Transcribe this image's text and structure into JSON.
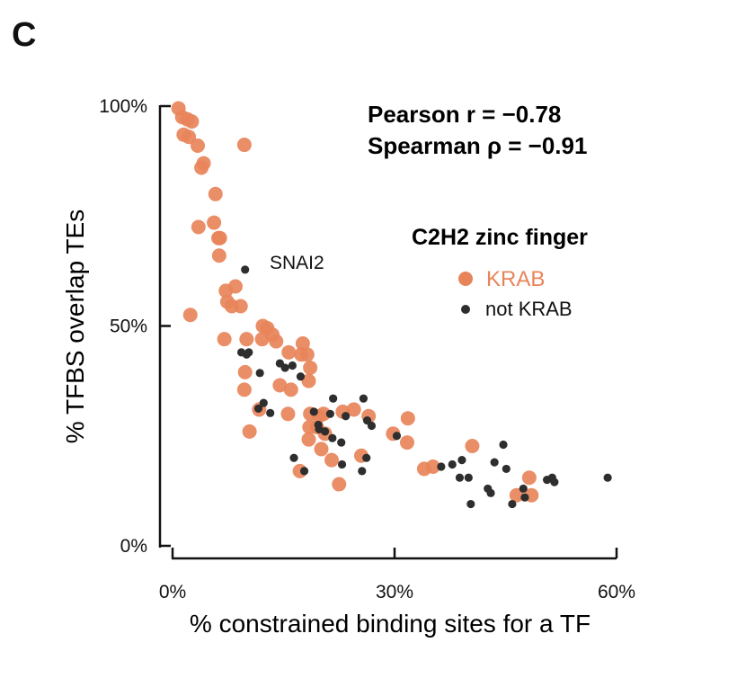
{
  "panel_label": "C",
  "colors": {
    "krab": "#E8845A",
    "not_krab": "#2E2E2E"
  },
  "chart_data": {
    "type": "scatter",
    "title": "",
    "xlabel": "% constrained binding sites for a TF",
    "ylabel": "% TFBS overlap TEs",
    "xlim": [
      0,
      60
    ],
    "ylim": [
      0,
      100
    ],
    "x_ticks": [
      {
        "value": 0,
        "label": "0%"
      },
      {
        "value": 30,
        "label": "30%"
      },
      {
        "value": 60,
        "label": "60%"
      }
    ],
    "y_ticks": [
      {
        "value": 0,
        "label": "0%"
      },
      {
        "value": 50,
        "label": "50%"
      },
      {
        "value": 100,
        "label": "100%"
      }
    ],
    "grid": false,
    "stats": [
      "Pearson r = −0.78",
      "Spearman ρ = −0.91"
    ],
    "legend": {
      "title": "C2H2 zinc finger",
      "position": "top-right",
      "entries": [
        {
          "label": "KRAB",
          "series": "KRAB"
        },
        {
          "label": "not KRAB",
          "series": "not KRAB"
        }
      ]
    },
    "annotations": [
      {
        "text": "SNAI2",
        "x": 9.5,
        "y": 63
      }
    ],
    "series": [
      {
        "name": "KRAB",
        "points": [
          [
            0.8,
            99.5
          ],
          [
            1.3,
            97.5
          ],
          [
            2.0,
            97
          ],
          [
            2.6,
            96.5
          ],
          [
            1.5,
            93.5
          ],
          [
            2.2,
            93
          ],
          [
            3.4,
            91
          ],
          [
            9.7,
            91.2
          ],
          [
            4.2,
            87
          ],
          [
            3.9,
            86
          ],
          [
            5.8,
            80
          ],
          [
            3.5,
            72.5
          ],
          [
            5.6,
            73.5
          ],
          [
            6.2,
            70
          ],
          [
            6.4,
            70
          ],
          [
            6.3,
            66
          ],
          [
            7.2,
            58
          ],
          [
            8.5,
            59
          ],
          [
            7.4,
            55.5
          ],
          [
            8.0,
            54.5
          ],
          [
            9.2,
            54.5
          ],
          [
            2.4,
            52.5
          ],
          [
            7.0,
            47
          ],
          [
            10.0,
            47
          ],
          [
            12.2,
            50
          ],
          [
            12.8,
            49.5
          ],
          [
            12.1,
            47
          ],
          [
            13.5,
            48
          ],
          [
            14.0,
            46.5
          ],
          [
            15.7,
            44
          ],
          [
            17.6,
            46
          ],
          [
            17.4,
            43.5
          ],
          [
            18.2,
            43.5
          ],
          [
            18.6,
            40.5
          ],
          [
            9.8,
            39.5
          ],
          [
            18.4,
            37.5
          ],
          [
            14.5,
            36.5
          ],
          [
            16.0,
            35.5
          ],
          [
            9.7,
            35.5
          ],
          [
            11.7,
            31
          ],
          [
            15.6,
            30
          ],
          [
            18.6,
            30
          ],
          [
            19.8,
            29.5
          ],
          [
            20.4,
            30
          ],
          [
            23.0,
            30.5
          ],
          [
            24.5,
            31
          ],
          [
            26.5,
            29.5
          ],
          [
            31.8,
            29
          ],
          [
            18.5,
            27
          ],
          [
            19.5,
            27
          ],
          [
            18.4,
            24.2
          ],
          [
            20.6,
            25.5
          ],
          [
            10.4,
            26
          ],
          [
            29.8,
            25.5
          ],
          [
            31.7,
            23.5
          ],
          [
            40.5,
            22.7
          ],
          [
            20.1,
            22
          ],
          [
            21.5,
            19.5
          ],
          [
            25.5,
            20.5
          ],
          [
            17.2,
            17
          ],
          [
            34.0,
            17.5
          ],
          [
            35.2,
            18
          ],
          [
            22.5,
            14
          ],
          [
            48.2,
            15.5
          ],
          [
            46.5,
            11.5
          ],
          [
            48.5,
            11.5
          ]
        ]
      },
      {
        "name": "not KRAB",
        "points": [
          [
            9.8,
            62.8
          ],
          [
            9.3,
            44
          ],
          [
            10.0,
            43.5
          ],
          [
            10.3,
            44
          ],
          [
            11.8,
            39.3
          ],
          [
            14.5,
            41.5
          ],
          [
            15.2,
            40.5
          ],
          [
            16.2,
            41
          ],
          [
            17.3,
            38.5
          ],
          [
            12.3,
            32.5
          ],
          [
            11.6,
            31.2
          ],
          [
            13.2,
            30.2
          ],
          [
            19.1,
            30.5
          ],
          [
            21.7,
            33.5
          ],
          [
            25.8,
            33.5
          ],
          [
            21.3,
            30
          ],
          [
            23.4,
            29.5
          ],
          [
            26.3,
            28.5
          ],
          [
            26.9,
            27.3
          ],
          [
            19.7,
            27.5
          ],
          [
            20.6,
            26
          ],
          [
            19.8,
            26.5
          ],
          [
            21.6,
            24.5
          ],
          [
            22.8,
            23.5
          ],
          [
            16.4,
            20
          ],
          [
            17.8,
            17
          ],
          [
            22.9,
            18.5
          ],
          [
            25.6,
            17
          ],
          [
            26.2,
            20
          ],
          [
            30.3,
            25
          ],
          [
            44.7,
            23
          ],
          [
            39.1,
            19.5
          ],
          [
            36.3,
            18
          ],
          [
            37.8,
            18.5
          ],
          [
            40.0,
            15.5
          ],
          [
            38.8,
            15.5
          ],
          [
            43.5,
            19
          ],
          [
            45.1,
            17.5
          ],
          [
            42.6,
            13
          ],
          [
            43.0,
            12
          ],
          [
            47.4,
            13
          ],
          [
            47.6,
            11
          ],
          [
            40.3,
            9.5
          ],
          [
            45.9,
            9.5
          ],
          [
            50.6,
            15
          ],
          [
            51.3,
            15.5
          ],
          [
            51.6,
            14.5
          ],
          [
            58.8,
            15.5
          ]
        ]
      }
    ]
  }
}
